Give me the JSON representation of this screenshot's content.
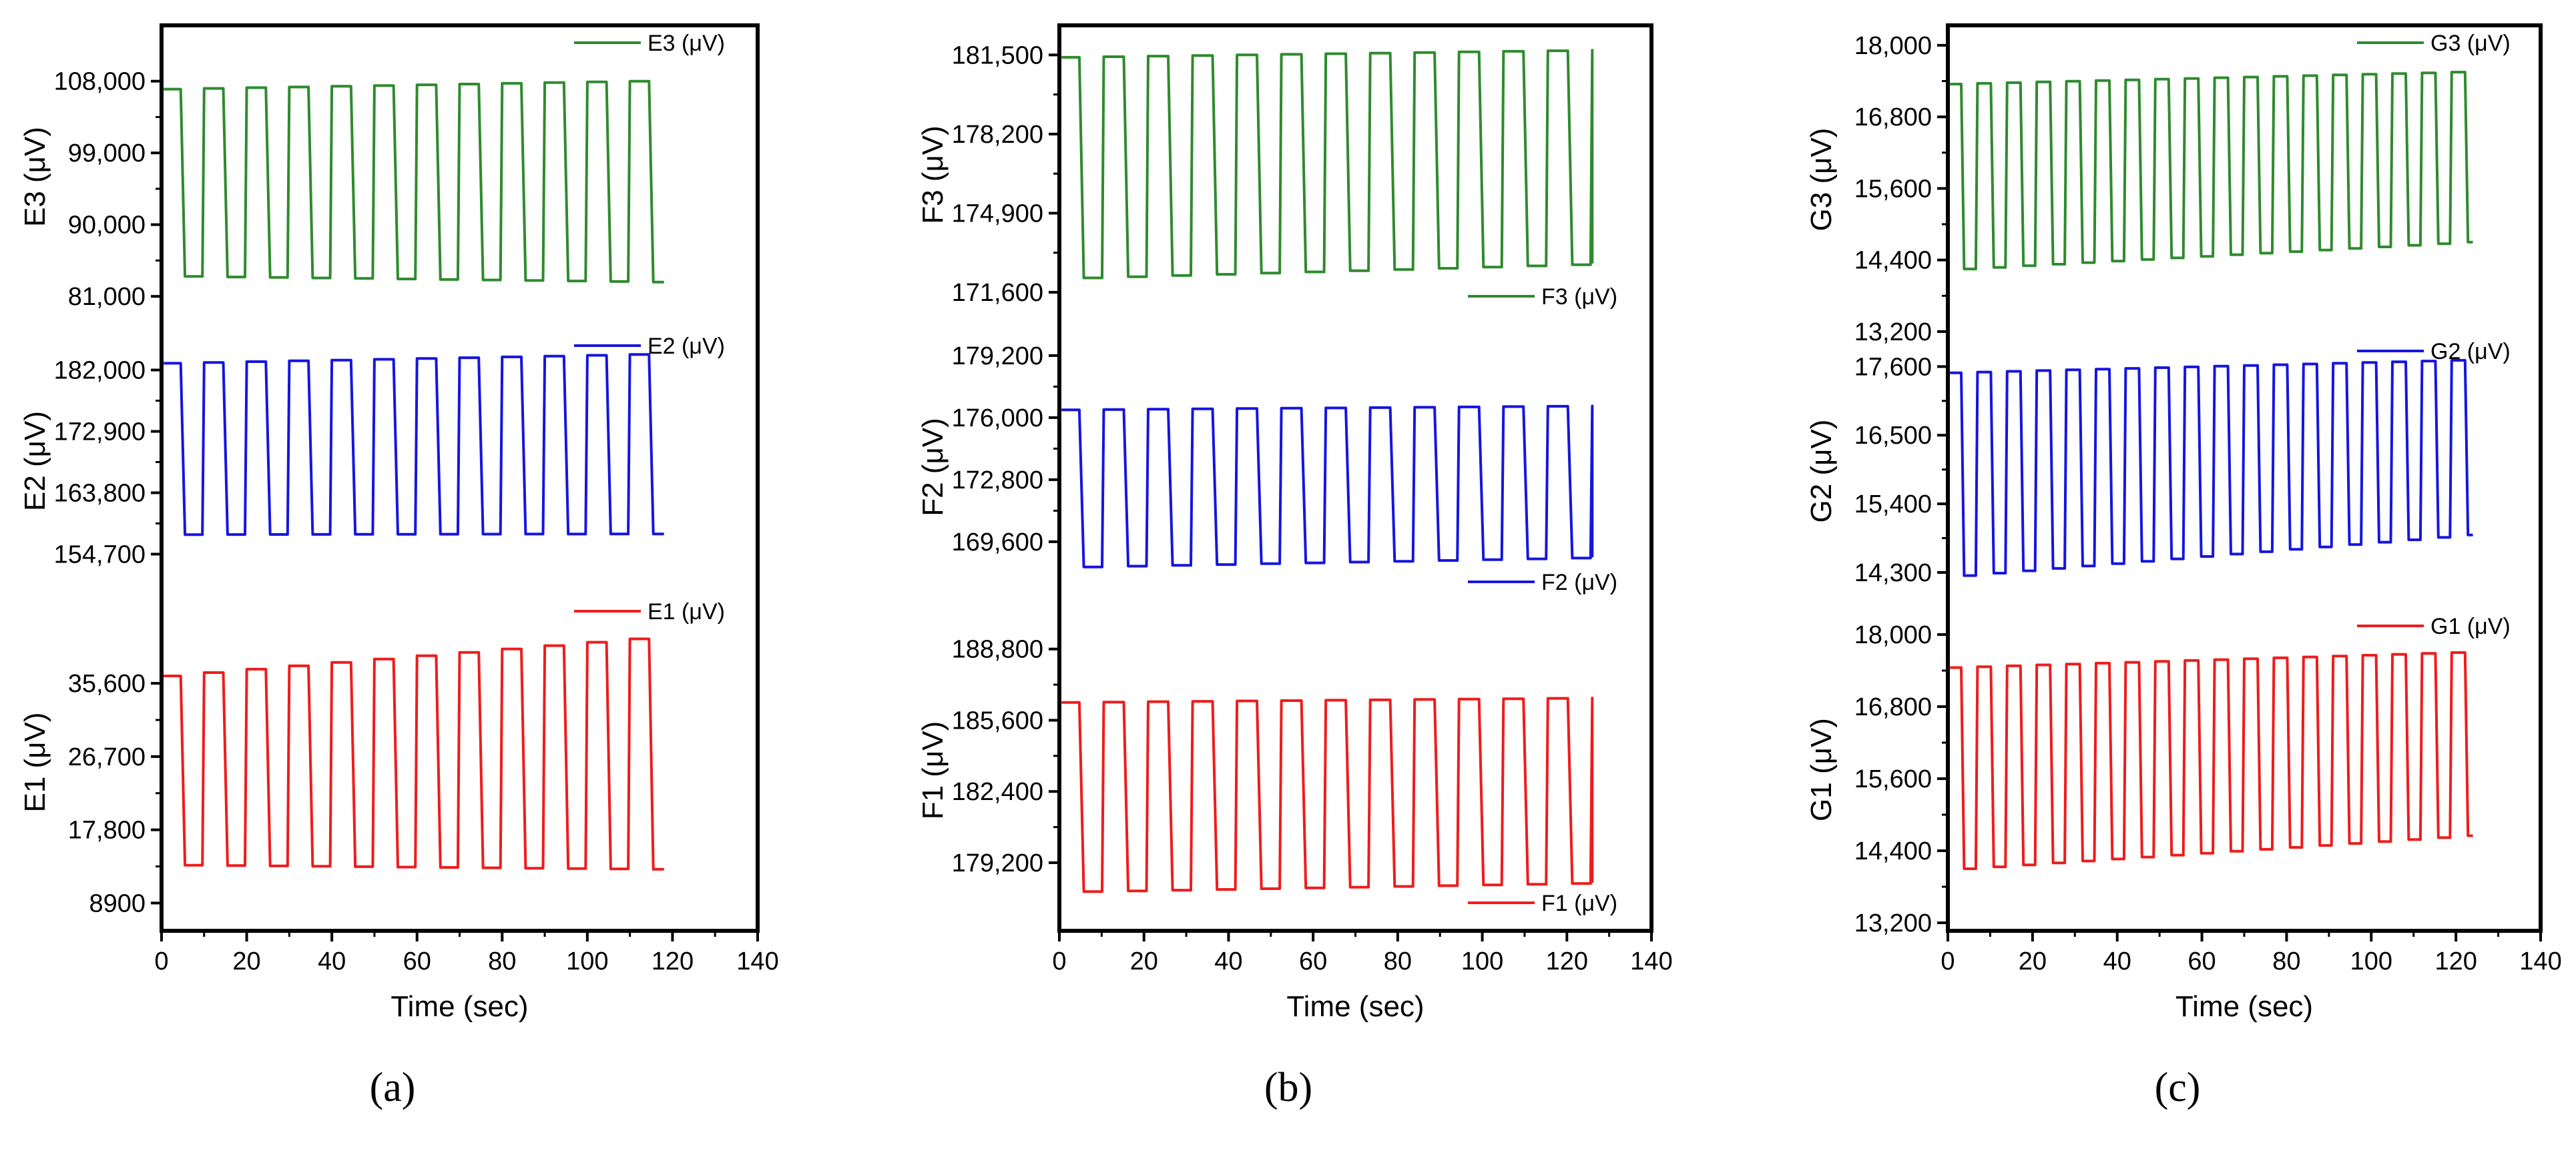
{
  "chart_data": [
    {
      "type": "line",
      "panel_label": "(a)",
      "xlabel": "Time (sec)",
      "xlim": [
        0,
        140
      ],
      "xticks": [
        "0",
        "20",
        "40",
        "60",
        "80",
        "100",
        "120",
        "140"
      ],
      "x_end": 118,
      "subplots": [
        {
          "name": "E3",
          "ylabel": "E3 (μV)",
          "legend": "E3 (μV)",
          "legend_pos": "top",
          "color": "#2e8b2e",
          "ylim": [
            78000,
            114000
          ],
          "yticks": [
            81000,
            90000,
            99000,
            108000
          ],
          "ytick_labels": [
            "81,000",
            "90,000",
            "99,000",
            "108,000"
          ],
          "high": [
            107000,
            108000
          ],
          "low": [
            83500,
            82800
          ],
          "period": 10
        },
        {
          "name": "E2",
          "ylabel": "E2 (μV)",
          "legend": "E2 (μV)",
          "legend_pos": "top",
          "color": "#1515e0",
          "ylim": [
            150000,
            187000
          ],
          "yticks": [
            154700,
            163800,
            172900,
            182000
          ],
          "ytick_labels": [
            "154,700",
            "163,800",
            "172,900",
            "182,000"
          ],
          "high": [
            183000,
            184300
          ],
          "low": [
            157600,
            157700
          ],
          "period": 10
        },
        {
          "name": "E1",
          "ylabel": "E1 (μV)",
          "legend": "E1 (μV)",
          "legend_pos": "top",
          "color": "#ee1c1c",
          "ylim": [
            6500,
            45500
          ],
          "yticks": [
            8900,
            17800,
            26700,
            35600
          ],
          "ytick_labels": [
            "8900",
            "17,800",
            "26,700",
            "35,600"
          ],
          "high": [
            36500,
            41000
          ],
          "low": [
            13500,
            13000
          ],
          "period": 10
        }
      ]
    },
    {
      "type": "line",
      "panel_label": "(b)",
      "xlabel": "Time (sec)",
      "xlim": [
        0,
        140
      ],
      "xticks": [
        "0",
        "20",
        "40",
        "60",
        "80",
        "100",
        "120",
        "140"
      ],
      "x_end": 126,
      "subplots": [
        {
          "name": "F3",
          "ylabel": "F3 (μV)",
          "legend": "F3 (μV)",
          "legend_pos": "bottom",
          "color": "#2e8b2e",
          "ylim": [
            170600,
            182400
          ],
          "yticks": [
            171600,
            174900,
            178200,
            181500
          ],
          "ytick_labels": [
            "171,600",
            "174,900",
            "178,200",
            "181,500"
          ],
          "high": [
            181400,
            181700
          ],
          "low": [
            172200,
            172800
          ],
          "period": 10.5
        },
        {
          "name": "F2",
          "ylabel": "F2 (μV)",
          "legend": "F2 (μV)",
          "legend_pos": "bottom",
          "color": "#1515e0",
          "ylim": [
            166500,
            180400
          ],
          "yticks": [
            169600,
            172800,
            176000,
            179200
          ],
          "ytick_labels": [
            "169,600",
            "172,800",
            "176,000",
            "179,200"
          ],
          "high": [
            176400,
            176600
          ],
          "low": [
            168300,
            168800
          ],
          "period": 10.5
        },
        {
          "name": "F1",
          "ylabel": "F1 (μV)",
          "legend": "F1 (μV)",
          "legend_pos": "bottom",
          "color": "#ee1c1c",
          "ylim": [
            176500,
            190200
          ],
          "yticks": [
            179200,
            182400,
            185600,
            188800
          ],
          "ytick_labels": [
            "179,200",
            "182,400",
            "185,600",
            "188,800"
          ],
          "high": [
            186400,
            186600
          ],
          "low": [
            177900,
            178300
          ],
          "period": 10.5
        }
      ]
    },
    {
      "type": "line",
      "panel_label": "(c)",
      "xlabel": "Time (sec)",
      "xlim": [
        0,
        140
      ],
      "xticks": [
        "0",
        "20",
        "40",
        "60",
        "80",
        "100",
        "120",
        "140"
      ],
      "x_end": 124,
      "subplots": [
        {
          "name": "G3",
          "ylabel": "G3 (μV)",
          "legend": "G3 (μV)",
          "legend_pos": "top",
          "color": "#2e8b2e",
          "ylim": [
            13300,
            18200
          ],
          "yticks": [
            13200,
            14400,
            15600,
            16800,
            18000
          ],
          "ytick_labels": [
            "13,200",
            "14,400",
            "15,600",
            "16,800",
            "18,000"
          ],
          "high": [
            17350,
            17550
          ],
          "low": [
            14250,
            14700
          ],
          "period": 7
        },
        {
          "name": "G2",
          "ylabel": "G2 (μV)",
          "legend": "G2 (μV)",
          "legend_pos": "top",
          "color": "#1515e0",
          "ylim": [
            13850,
            18000
          ],
          "yticks": [
            14300,
            15400,
            16500,
            17600
          ],
          "ytick_labels": [
            "14,300",
            "15,400",
            "16,500",
            "17,600"
          ],
          "high": [
            17500,
            17700
          ],
          "low": [
            14250,
            14900
          ],
          "period": 7
        },
        {
          "name": "G1",
          "ylabel": "G1 (μV)",
          "legend": "G1 (μV)",
          "legend_pos": "top",
          "color": "#ee1c1c",
          "ylim": [
            13200,
            18300
          ],
          "yticks": [
            13200,
            14400,
            15600,
            16800,
            18000
          ],
          "ytick_labels": [
            "13,200",
            "14,400",
            "15,600",
            "16,800",
            "18,000"
          ],
          "high": [
            17450,
            17700
          ],
          "low": [
            14100,
            14650
          ],
          "period": 7
        }
      ]
    }
  ]
}
